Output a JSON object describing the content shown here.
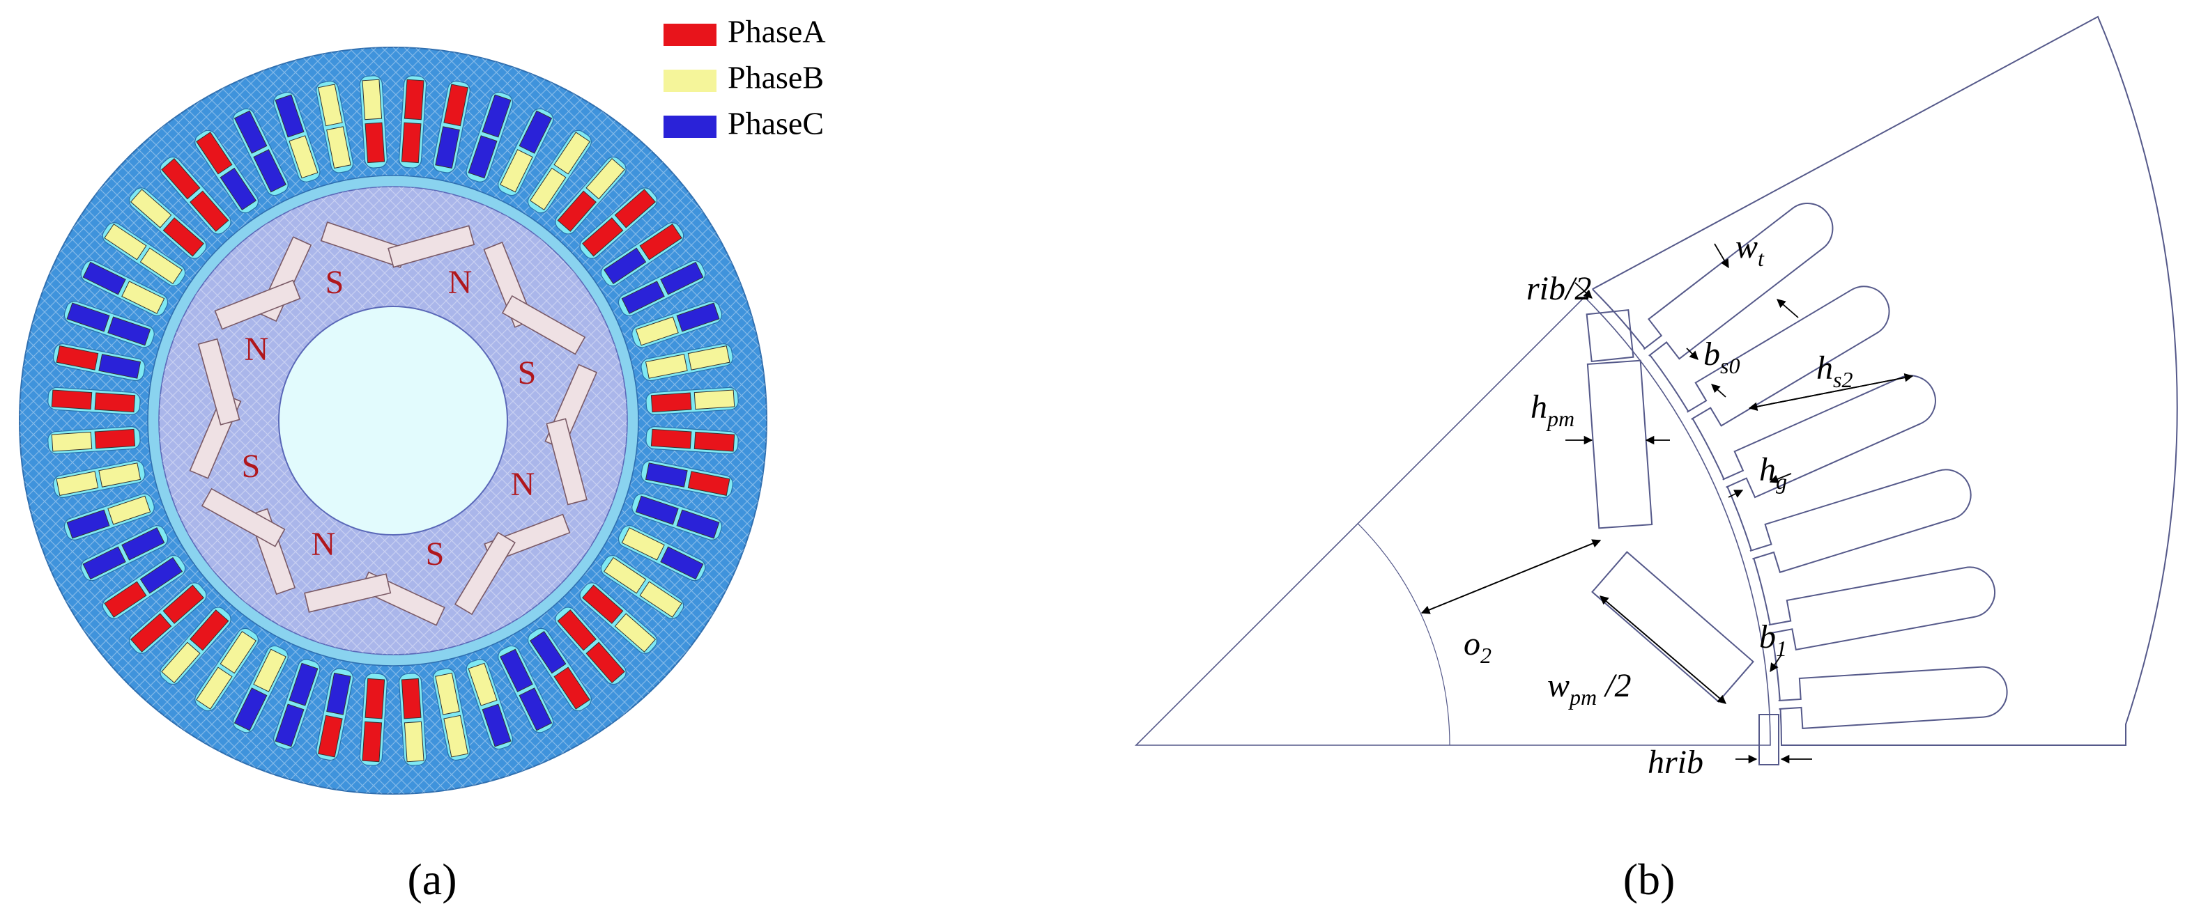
{
  "panel_a": {
    "legend": [
      {
        "label": "PhaseA",
        "color": "#e8141b"
      },
      {
        "label": "PhaseB",
        "color": "#f5f59a"
      },
      {
        "label": "PhaseC",
        "color": "#2a22d8"
      }
    ],
    "pole_labels": [
      "S",
      "N",
      "S",
      "N",
      "S",
      "N",
      "S",
      "N"
    ],
    "caption": "(a)"
  },
  "panel_b": {
    "dimension_labels": [
      {
        "base": "rib/2"
      },
      {
        "base": "w",
        "sub": "t"
      },
      {
        "base": "b",
        "sub": "s0"
      },
      {
        "base": "h",
        "sub": "s2"
      },
      {
        "base": "h",
        "sub": "pm"
      },
      {
        "base": "h",
        "sub": "g"
      },
      {
        "base": "o",
        "sub": "2"
      },
      {
        "base": "b",
        "sub": "1"
      },
      {
        "base": "w",
        "sub": "pm",
        "suffix": " /2"
      },
      {
        "base": "hrib"
      }
    ],
    "caption": "(b)"
  }
}
